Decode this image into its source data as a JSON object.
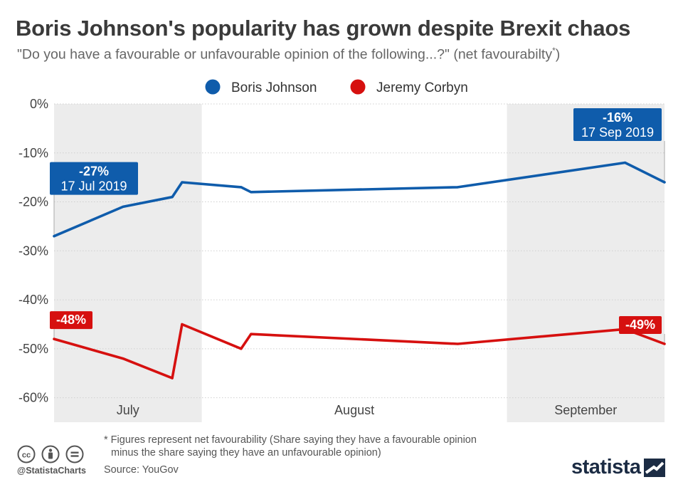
{
  "header": {
    "title": "Boris Johnson's popularity has grown despite Brexit chaos",
    "subtitle": "\"Do you have a favourable or unfavourable opinion of the following...?\" (net favourabilty",
    "subtitle_mark": "*",
    "subtitle_end": ")"
  },
  "chart_data": {
    "type": "line",
    "x_type": "date",
    "x_range": [
      "2019-07-17",
      "2019-09-17"
    ],
    "ylim": [
      -65,
      0
    ],
    "yticks": [
      0,
      -10,
      -20,
      -30,
      -40,
      -50,
      -60
    ],
    "ytick_labels": [
      "0%",
      "-10%",
      "-20%",
      "-30%",
      "-40%",
      "-50%",
      "-60%"
    ],
    "grid": true,
    "legend_position": "top",
    "months": [
      {
        "label": "July",
        "start": "2019-07-17",
        "end": "2019-07-31",
        "shaded": true
      },
      {
        "label": "August",
        "start": "2019-08-01",
        "end": "2019-08-31",
        "shaded": false
      },
      {
        "label": "September",
        "start": "2019-09-01",
        "end": "2019-09-17",
        "shaded": true
      }
    ],
    "series": [
      {
        "name": "Boris Johnson",
        "color": "#0f5cab",
        "points": [
          {
            "x": "2019-07-17",
            "y": -27
          },
          {
            "x": "2019-07-24",
            "y": -21
          },
          {
            "x": "2019-07-29",
            "y": -19
          },
          {
            "x": "2019-07-30",
            "y": -16
          },
          {
            "x": "2019-08-05",
            "y": -17
          },
          {
            "x": "2019-08-06",
            "y": -18
          },
          {
            "x": "2019-08-27",
            "y": -17
          },
          {
            "x": "2019-09-13",
            "y": -12
          },
          {
            "x": "2019-09-17",
            "y": -16
          }
        ],
        "annotations": [
          {
            "x": "2019-07-17",
            "y": -27,
            "value": "-27%",
            "date": "17 Jul 2019"
          },
          {
            "x": "2019-09-17",
            "y": -16,
            "value": "-16%",
            "date": "17 Sep 2019"
          }
        ]
      },
      {
        "name": "Jeremy Corbyn",
        "color": "#d6100f",
        "points": [
          {
            "x": "2019-07-17",
            "y": -48
          },
          {
            "x": "2019-07-24",
            "y": -52
          },
          {
            "x": "2019-07-29",
            "y": -56
          },
          {
            "x": "2019-07-30",
            "y": -45
          },
          {
            "x": "2019-08-05",
            "y": -50
          },
          {
            "x": "2019-08-06",
            "y": -47
          },
          {
            "x": "2019-08-27",
            "y": -49
          },
          {
            "x": "2019-09-13",
            "y": -46
          },
          {
            "x": "2019-09-17",
            "y": -49
          }
        ],
        "annotations": [
          {
            "x": "2019-07-17",
            "y": -48,
            "value": "-48%"
          },
          {
            "x": "2019-09-17",
            "y": -49,
            "value": "-49%"
          }
        ]
      }
    ]
  },
  "footer": {
    "footnote_line1": "* Figures represent net favourability (Share saying they have a favourable opinion",
    "footnote_line2": "minus the share saying they have an unfavourable opinion)",
    "source": "Source: YouGov",
    "handle": "@StatistaCharts",
    "brand": "statista",
    "license_icons": [
      "cc-icon",
      "attribution-icon",
      "no-derivatives-icon"
    ]
  }
}
